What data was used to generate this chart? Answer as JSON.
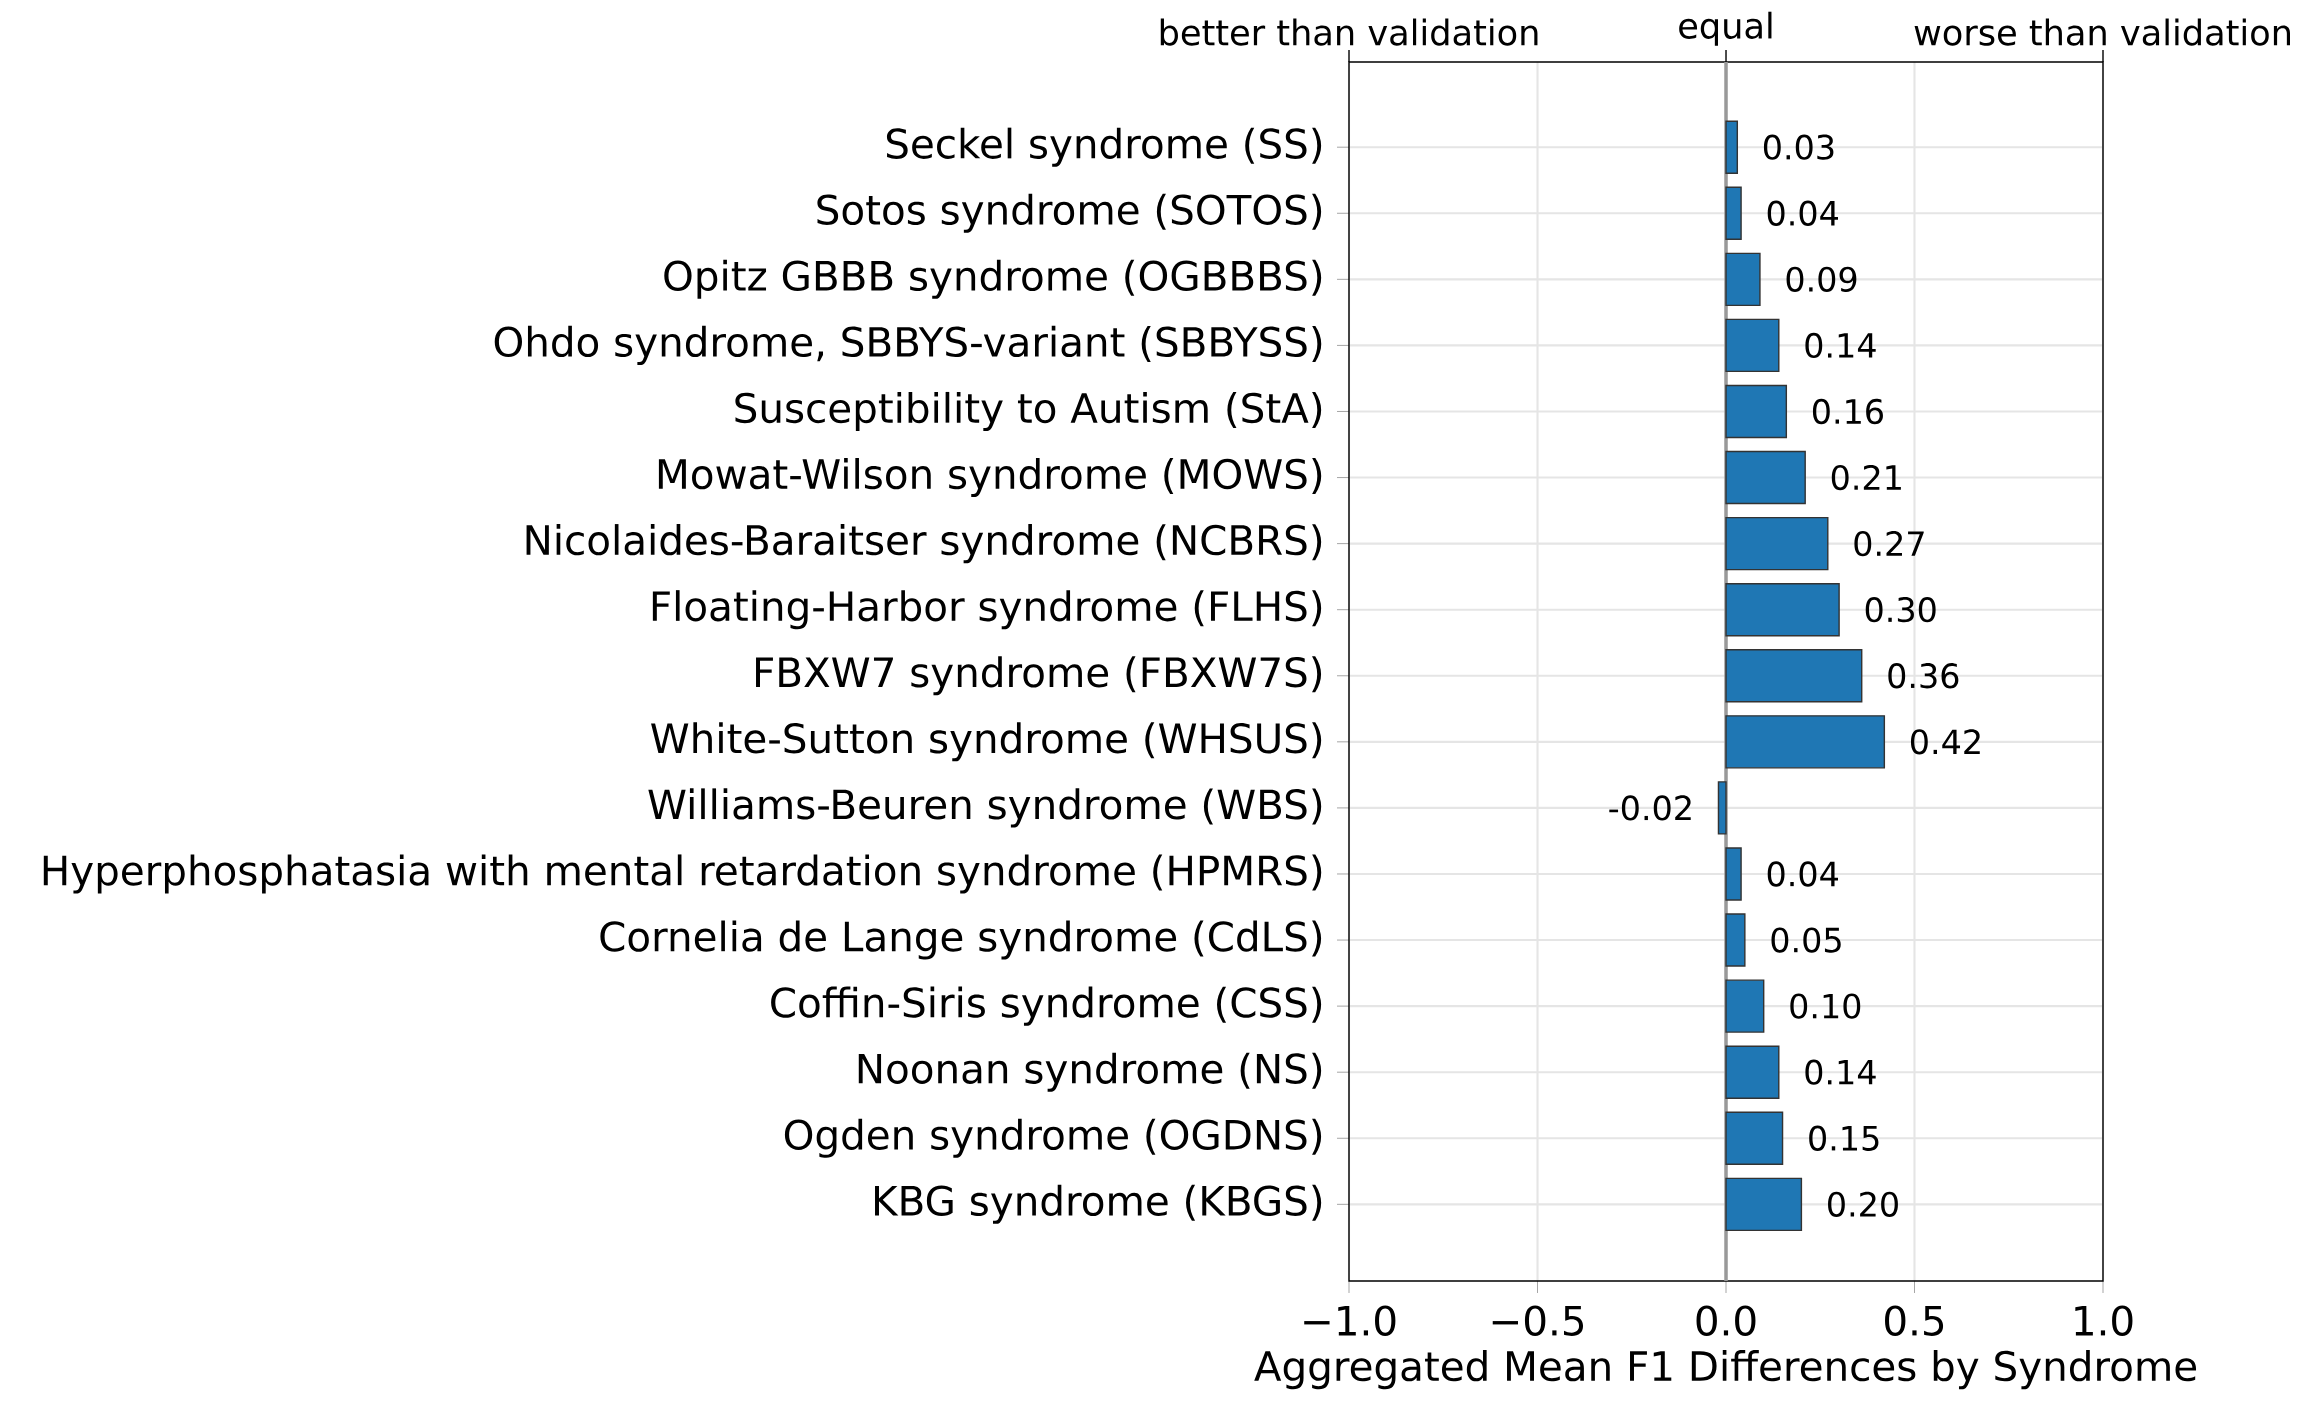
{
  "chart_data": {
    "type": "bar",
    "orientation": "horizontal",
    "xlabel": "Aggregated Mean F1 Differences by Syndrome",
    "categories": [
      "Seckel syndrome (SS)",
      "Sotos syndrome (SOTOS)",
      "Opitz GBBB syndrome (OGBBBS)",
      "Ohdo syndrome, SBBYS-variant (SBBYSS)",
      "Susceptibility to Autism (StA)",
      "Mowat-Wilson syndrome (MOWS)",
      "Nicolaides-Baraitser syndrome (NCBRS)",
      "Floating-Harbor syndrome (FLHS)",
      "FBXW7 syndrome (FBXW7S)",
      "White-Sutton syndrome (WHSUS)",
      "Williams-Beuren syndrome (WBS)",
      "Hyperphosphatasia with mental retardation syndrome (HPMRS)",
      "Cornelia de Lange syndrome (CdLS)",
      "Coffin-Siris syndrome (CSS)",
      "Noonan syndrome (NS)",
      "Ogden syndrome (OGDNS)",
      "KBG syndrome (KBGS)"
    ],
    "values": [
      0.03,
      0.04,
      0.09,
      0.14,
      0.16,
      0.21,
      0.27,
      0.3,
      0.36,
      0.42,
      -0.02,
      0.04,
      0.05,
      0.1,
      0.14,
      0.15,
      0.2
    ],
    "value_labels": [
      "0.03",
      "0.04",
      "0.09",
      "0.14",
      "0.16",
      "0.21",
      "0.27",
      "0.30",
      "0.36",
      "0.42",
      "-0.02",
      "0.04",
      "0.05",
      "0.10",
      "0.14",
      "0.15",
      "0.20"
    ],
    "color": "#1f77b4",
    "xlim": [
      -1,
      1
    ],
    "xticks": [
      {
        "value": -1,
        "label": "−1.0"
      },
      {
        "value": -0.5,
        "label": "−0.5"
      },
      {
        "value": 0,
        "label": "0.0"
      },
      {
        "value": 0.5,
        "label": "0.5"
      },
      {
        "value": 1,
        "label": "1.0"
      }
    ],
    "annotations": [
      "better than validation",
      "worse than validation"
    ],
    "ref_lines": [
      {
        "axis": "x",
        "value": 0,
        "label": "equal",
        "color": "#999999"
      }
    ],
    "grid": true
  }
}
